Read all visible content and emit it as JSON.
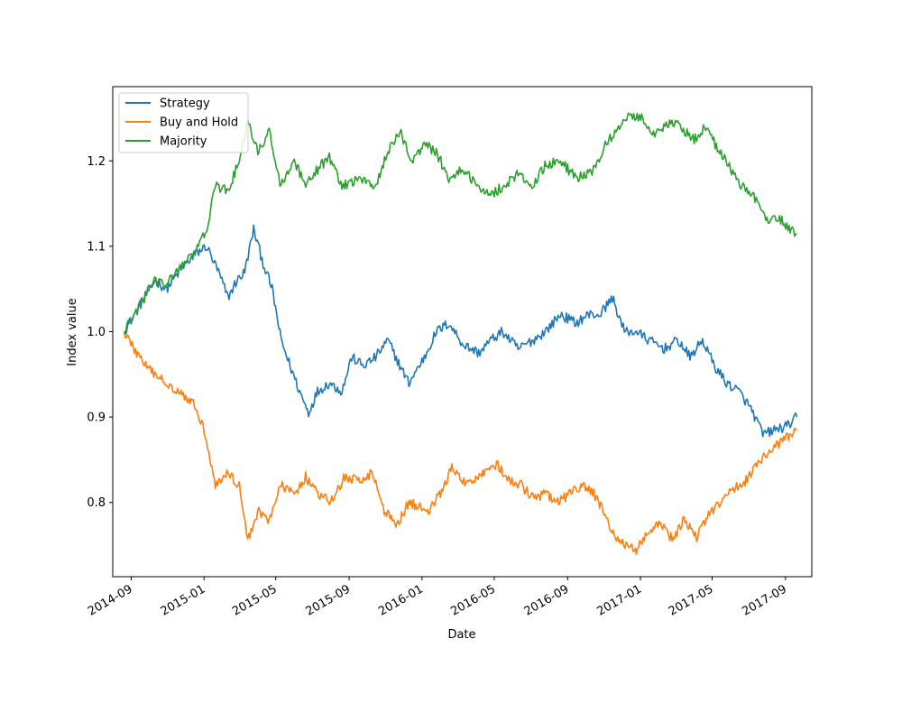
{
  "chart_data": {
    "type": "line",
    "title": "",
    "xlabel": "Date",
    "ylabel": "Index value",
    "x_ticks": [
      "2014-09",
      "2015-01",
      "2015-05",
      "2015-09",
      "2016-01",
      "2016-05",
      "2016-09",
      "2017-01",
      "2017-05",
      "2017-09"
    ],
    "y_ticks": [
      0.8,
      0.9,
      1.0,
      1.1,
      1.2
    ],
    "y_tick_labels": [
      "0.8",
      "0.9",
      "1.0",
      "1.1",
      "1.2"
    ],
    "xlim": [
      "2014-08-01",
      "2017-10-15"
    ],
    "ylim": [
      0.713,
      1.287
    ],
    "grid": false,
    "legend_position": "upper-left",
    "series": [
      {
        "name": "Strategy",
        "color": "#1f77b4",
        "points": [
          [
            "2014-08-20",
            1.0
          ],
          [
            "2014-09-15",
            1.03
          ],
          [
            "2014-10-10",
            1.06
          ],
          [
            "2014-10-30",
            1.05
          ],
          [
            "2014-11-20",
            1.07
          ],
          [
            "2014-12-15",
            1.09
          ],
          [
            "2015-01-05",
            1.1
          ],
          [
            "2015-01-25",
            1.07
          ],
          [
            "2015-02-10",
            1.04
          ],
          [
            "2015-02-25",
            1.06
          ],
          [
            "2015-03-10",
            1.07
          ],
          [
            "2015-03-25",
            1.12
          ],
          [
            "2015-04-10",
            1.08
          ],
          [
            "2015-04-25",
            1.05
          ],
          [
            "2015-05-10",
            0.99
          ],
          [
            "2015-05-25",
            0.96
          ],
          [
            "2015-06-10",
            0.93
          ],
          [
            "2015-06-25",
            0.905
          ],
          [
            "2015-07-10",
            0.93
          ],
          [
            "2015-07-30",
            0.94
          ],
          [
            "2015-08-20",
            0.93
          ],
          [
            "2015-09-05",
            0.97
          ],
          [
            "2015-09-25",
            0.96
          ],
          [
            "2015-10-15",
            0.97
          ],
          [
            "2015-11-05",
            0.99
          ],
          [
            "2015-11-25",
            0.96
          ],
          [
            "2015-12-10",
            0.94
          ],
          [
            "2016-01-05",
            0.97
          ],
          [
            "2016-01-25",
            1.0
          ],
          [
            "2016-02-15",
            1.01
          ],
          [
            "2016-03-10",
            0.985
          ],
          [
            "2016-04-05",
            0.975
          ],
          [
            "2016-04-25",
            0.99
          ],
          [
            "2016-05-15",
            1.0
          ],
          [
            "2016-06-10",
            0.98
          ],
          [
            "2016-07-05",
            0.99
          ],
          [
            "2016-07-25",
            1.0
          ],
          [
            "2016-08-20",
            1.02
          ],
          [
            "2016-09-15",
            1.01
          ],
          [
            "2016-10-05",
            1.02
          ],
          [
            "2016-10-25",
            1.02
          ],
          [
            "2016-11-15",
            1.04
          ],
          [
            "2016-12-05",
            1.0
          ],
          [
            "2016-12-25",
            1.0
          ],
          [
            "2017-01-15",
            0.99
          ],
          [
            "2017-02-10",
            0.98
          ],
          [
            "2017-03-05",
            0.99
          ],
          [
            "2017-03-25",
            0.97
          ],
          [
            "2017-04-15",
            0.99
          ],
          [
            "2017-05-05",
            0.96
          ],
          [
            "2017-05-25",
            0.94
          ],
          [
            "2017-06-15",
            0.93
          ],
          [
            "2017-07-05",
            0.91
          ],
          [
            "2017-07-25",
            0.88
          ],
          [
            "2017-08-15",
            0.885
          ],
          [
            "2017-09-05",
            0.89
          ],
          [
            "2017-09-20",
            0.9
          ]
        ]
      },
      {
        "name": "Buy and Hold",
        "color": "#ff7f0e",
        "points": [
          [
            "2014-08-20",
            1.0
          ],
          [
            "2014-09-10",
            0.975
          ],
          [
            "2014-10-01",
            0.955
          ],
          [
            "2014-10-20",
            0.945
          ],
          [
            "2014-11-10",
            0.935
          ],
          [
            "2014-12-01",
            0.925
          ],
          [
            "2014-12-20",
            0.91
          ],
          [
            "2015-01-05",
            0.875
          ],
          [
            "2015-01-20",
            0.82
          ],
          [
            "2015-02-10",
            0.835
          ],
          [
            "2015-03-01",
            0.82
          ],
          [
            "2015-03-15",
            0.755
          ],
          [
            "2015-04-01",
            0.79
          ],
          [
            "2015-04-20",
            0.78
          ],
          [
            "2015-05-10",
            0.82
          ],
          [
            "2015-06-01",
            0.81
          ],
          [
            "2015-06-20",
            0.83
          ],
          [
            "2015-07-10",
            0.81
          ],
          [
            "2015-08-01",
            0.8
          ],
          [
            "2015-08-25",
            0.83
          ],
          [
            "2015-09-15",
            0.825
          ],
          [
            "2015-10-10",
            0.835
          ],
          [
            "2015-10-30",
            0.79
          ],
          [
            "2015-11-20",
            0.775
          ],
          [
            "2015-12-10",
            0.8
          ],
          [
            "2016-01-10",
            0.79
          ],
          [
            "2016-02-01",
            0.81
          ],
          [
            "2016-02-20",
            0.84
          ],
          [
            "2016-03-15",
            0.82
          ],
          [
            "2016-04-10",
            0.835
          ],
          [
            "2016-05-05",
            0.845
          ],
          [
            "2016-05-25",
            0.825
          ],
          [
            "2016-06-15",
            0.82
          ],
          [
            "2016-07-05",
            0.805
          ],
          [
            "2016-07-25",
            0.81
          ],
          [
            "2016-08-15",
            0.8
          ],
          [
            "2016-09-05",
            0.81
          ],
          [
            "2016-09-25",
            0.82
          ],
          [
            "2016-10-15",
            0.81
          ],
          [
            "2016-11-01",
            0.79
          ],
          [
            "2016-11-20",
            0.755
          ],
          [
            "2016-12-10",
            0.75
          ],
          [
            "2016-12-25",
            0.745
          ],
          [
            "2017-01-15",
            0.765
          ],
          [
            "2017-02-05",
            0.775
          ],
          [
            "2017-02-25",
            0.755
          ],
          [
            "2017-03-15",
            0.78
          ],
          [
            "2017-04-05",
            0.76
          ],
          [
            "2017-04-25",
            0.785
          ],
          [
            "2017-05-15",
            0.8
          ],
          [
            "2017-06-05",
            0.815
          ],
          [
            "2017-06-25",
            0.825
          ],
          [
            "2017-07-15",
            0.845
          ],
          [
            "2017-08-05",
            0.86
          ],
          [
            "2017-08-25",
            0.87
          ],
          [
            "2017-09-10",
            0.88
          ],
          [
            "2017-09-20",
            0.885
          ]
        ]
      },
      {
        "name": "Majority",
        "color": "#2ca02c",
        "points": [
          [
            "2014-08-20",
            1.0
          ],
          [
            "2014-09-15",
            1.03
          ],
          [
            "2014-10-10",
            1.06
          ],
          [
            "2014-10-30",
            1.055
          ],
          [
            "2014-11-20",
            1.075
          ],
          [
            "2014-12-15",
            1.09
          ],
          [
            "2015-01-05",
            1.12
          ],
          [
            "2015-01-20",
            1.17
          ],
          [
            "2015-02-10",
            1.165
          ],
          [
            "2015-03-01",
            1.2
          ],
          [
            "2015-03-15",
            1.245
          ],
          [
            "2015-04-01",
            1.21
          ],
          [
            "2015-04-20",
            1.235
          ],
          [
            "2015-05-10",
            1.17
          ],
          [
            "2015-06-01",
            1.2
          ],
          [
            "2015-06-20",
            1.17
          ],
          [
            "2015-07-10",
            1.19
          ],
          [
            "2015-07-30",
            1.205
          ],
          [
            "2015-08-20",
            1.17
          ],
          [
            "2015-09-05",
            1.175
          ],
          [
            "2015-09-25",
            1.18
          ],
          [
            "2015-10-15",
            1.17
          ],
          [
            "2015-11-05",
            1.21
          ],
          [
            "2015-11-25",
            1.235
          ],
          [
            "2015-12-15",
            1.2
          ],
          [
            "2016-01-05",
            1.22
          ],
          [
            "2016-01-25",
            1.21
          ],
          [
            "2016-02-15",
            1.18
          ],
          [
            "2016-03-10",
            1.19
          ],
          [
            "2016-04-05",
            1.17
          ],
          [
            "2016-04-25",
            1.16
          ],
          [
            "2016-05-15",
            1.17
          ],
          [
            "2016-06-10",
            1.185
          ],
          [
            "2016-07-05",
            1.17
          ],
          [
            "2016-07-25",
            1.195
          ],
          [
            "2016-08-20",
            1.2
          ],
          [
            "2016-09-15",
            1.18
          ],
          [
            "2016-10-10",
            1.185
          ],
          [
            "2016-11-05",
            1.22
          ],
          [
            "2016-11-25",
            1.24
          ],
          [
            "2016-12-15",
            1.255
          ],
          [
            "2017-01-05",
            1.25
          ],
          [
            "2017-01-25",
            1.23
          ],
          [
            "2017-02-15",
            1.245
          ],
          [
            "2017-03-10",
            1.24
          ],
          [
            "2017-04-01",
            1.225
          ],
          [
            "2017-04-20",
            1.24
          ],
          [
            "2017-05-10",
            1.215
          ],
          [
            "2017-06-01",
            1.19
          ],
          [
            "2017-06-20",
            1.17
          ],
          [
            "2017-07-10",
            1.16
          ],
          [
            "2017-07-30",
            1.13
          ],
          [
            "2017-08-20",
            1.135
          ],
          [
            "2017-09-05",
            1.12
          ],
          [
            "2017-09-20",
            1.115
          ]
        ]
      }
    ]
  }
}
